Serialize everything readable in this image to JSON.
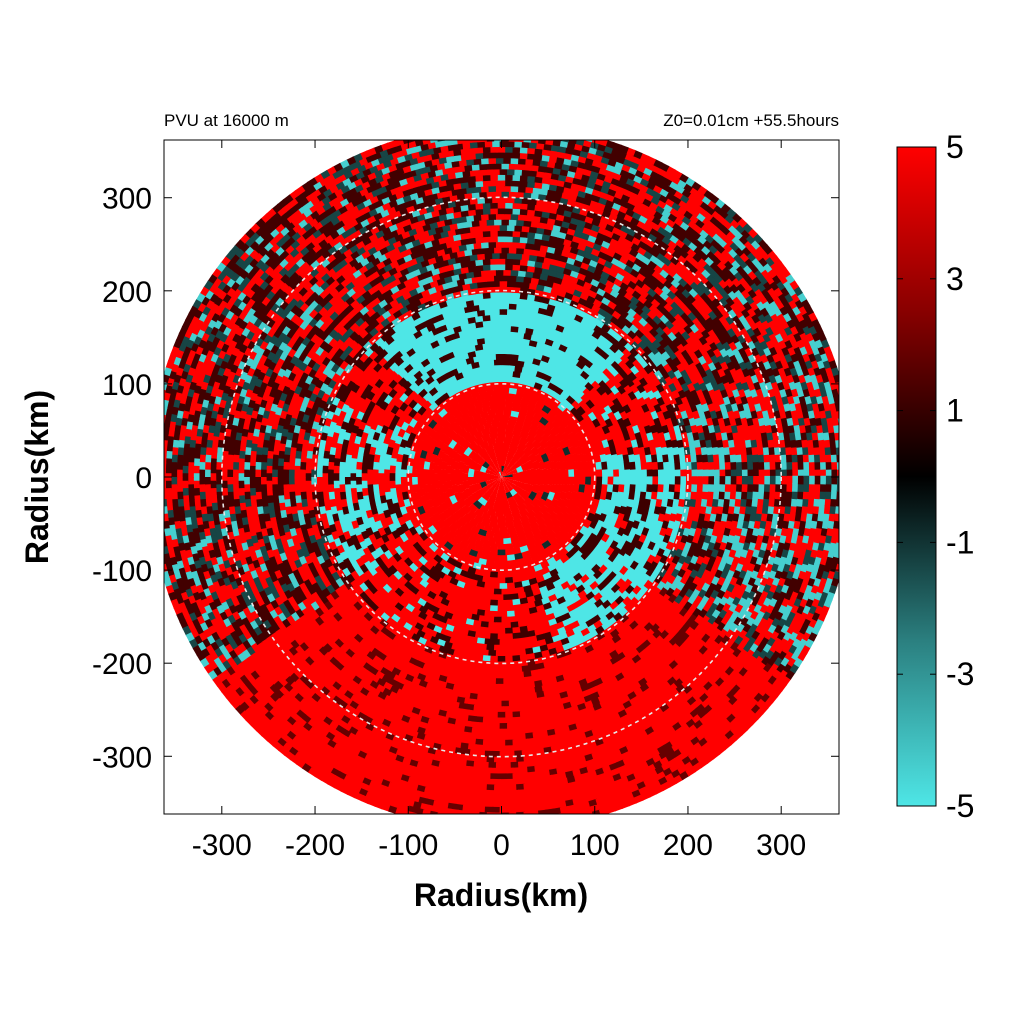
{
  "chart_data": {
    "type": "heatmap",
    "title_left": "PVU at 16000 m",
    "title_right": "Z0=0.01cm  +55.5hours",
    "xlabel": "Radius(km)",
    "ylabel": "Radius(km)",
    "xlim": [
      -362,
      362
    ],
    "ylim": [
      -362,
      362
    ],
    "x_ticks": [
      -300,
      -200,
      -100,
      0,
      100,
      200,
      300
    ],
    "y_ticks": [
      300,
      200,
      100,
      0,
      -100,
      -200,
      -300
    ],
    "data_radius_km": 375,
    "reference_circles_km": [
      100,
      200,
      300
    ],
    "colorbar": {
      "min": -5,
      "max": 5,
      "ticks": [
        5,
        3,
        1,
        -1,
        -3,
        -5
      ],
      "colors": {
        "low": "#4ee6e6",
        "mid": "#000000",
        "high": "#ff0000"
      }
    },
    "field_regions": [
      {
        "region": "inner core r<100 km",
        "value": 5
      },
      {
        "region": "north arc 100-180 km",
        "value": -5
      },
      {
        "region": "east-southeast arc 100-200 km",
        "value": -5
      },
      {
        "region": "west arc 120-200 km",
        "value": -4
      },
      {
        "region": "south sector r>200 km",
        "value": 5
      },
      {
        "region": "outer ring 200-375 km",
        "value": 2
      }
    ]
  }
}
